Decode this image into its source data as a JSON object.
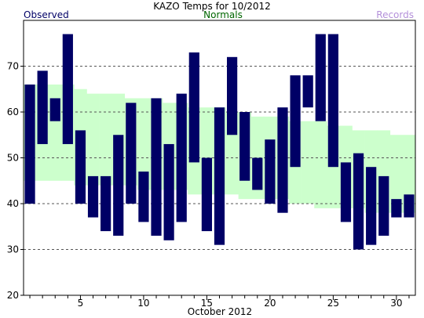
{
  "chart_data": {
    "type": "bar",
    "title": "KAZO Temps for  10/2012",
    "xlabel": "October 2012",
    "ylabel": "",
    "ylim": [
      20,
      80
    ],
    "xlim": [
      0.5,
      31.5
    ],
    "y_ticks": [
      20,
      30,
      40,
      50,
      60,
      70
    ],
    "x_ticks": [
      5,
      10,
      15,
      20,
      25,
      30
    ],
    "grid": "horizontal dashed",
    "legend": [
      {
        "name": "Observed",
        "color": "#000066",
        "placement": "top-left"
      },
      {
        "name": "Normals",
        "color": "#006600",
        "placement": "top-center"
      },
      {
        "name": "Records",
        "color": "#b38fd9",
        "placement": "top-right"
      }
    ],
    "colors": {
      "observed": "#000066",
      "normals": "#ccffcc",
      "grid": "#555555",
      "axis": "#000000"
    },
    "days": [
      1,
      2,
      3,
      4,
      5,
      6,
      7,
      8,
      9,
      10,
      11,
      12,
      13,
      14,
      15,
      16,
      17,
      18,
      19,
      20,
      21,
      22,
      23,
      24,
      25,
      26,
      27,
      28,
      29,
      30,
      31
    ],
    "observed": {
      "name": "Observed",
      "high": [
        66,
        69,
        63,
        77,
        56,
        46,
        46,
        55,
        62,
        47,
        63,
        53,
        64,
        73,
        50,
        61,
        72,
        60,
        50,
        54,
        61,
        68,
        68,
        77,
        77,
        49,
        51,
        48,
        46,
        41,
        42
      ],
      "low": [
        40,
        53,
        58,
        53,
        40,
        37,
        34,
        33,
        40,
        36,
        33,
        32,
        36,
        49,
        34,
        31,
        55,
        45,
        43,
        40,
        38,
        48,
        61,
        58,
        48,
        36,
        30,
        31,
        33,
        37,
        37
      ]
    },
    "normals": {
      "name": "Normals",
      "high": [
        66,
        66,
        66,
        66,
        65,
        64,
        64,
        64,
        63,
        63,
        63,
        62,
        62,
        61,
        61,
        61,
        60,
        60,
        59,
        59,
        59,
        58,
        58,
        58,
        57,
        57,
        56,
        56,
        56,
        55,
        55
      ],
      "low": [
        45,
        45,
        45,
        45,
        44,
        44,
        44,
        44,
        44,
        43,
        43,
        43,
        43,
        42,
        42,
        42,
        42,
        41,
        41,
        41,
        41,
        40,
        40,
        39,
        39,
        39,
        39,
        38,
        38,
        38,
        38
      ]
    }
  }
}
